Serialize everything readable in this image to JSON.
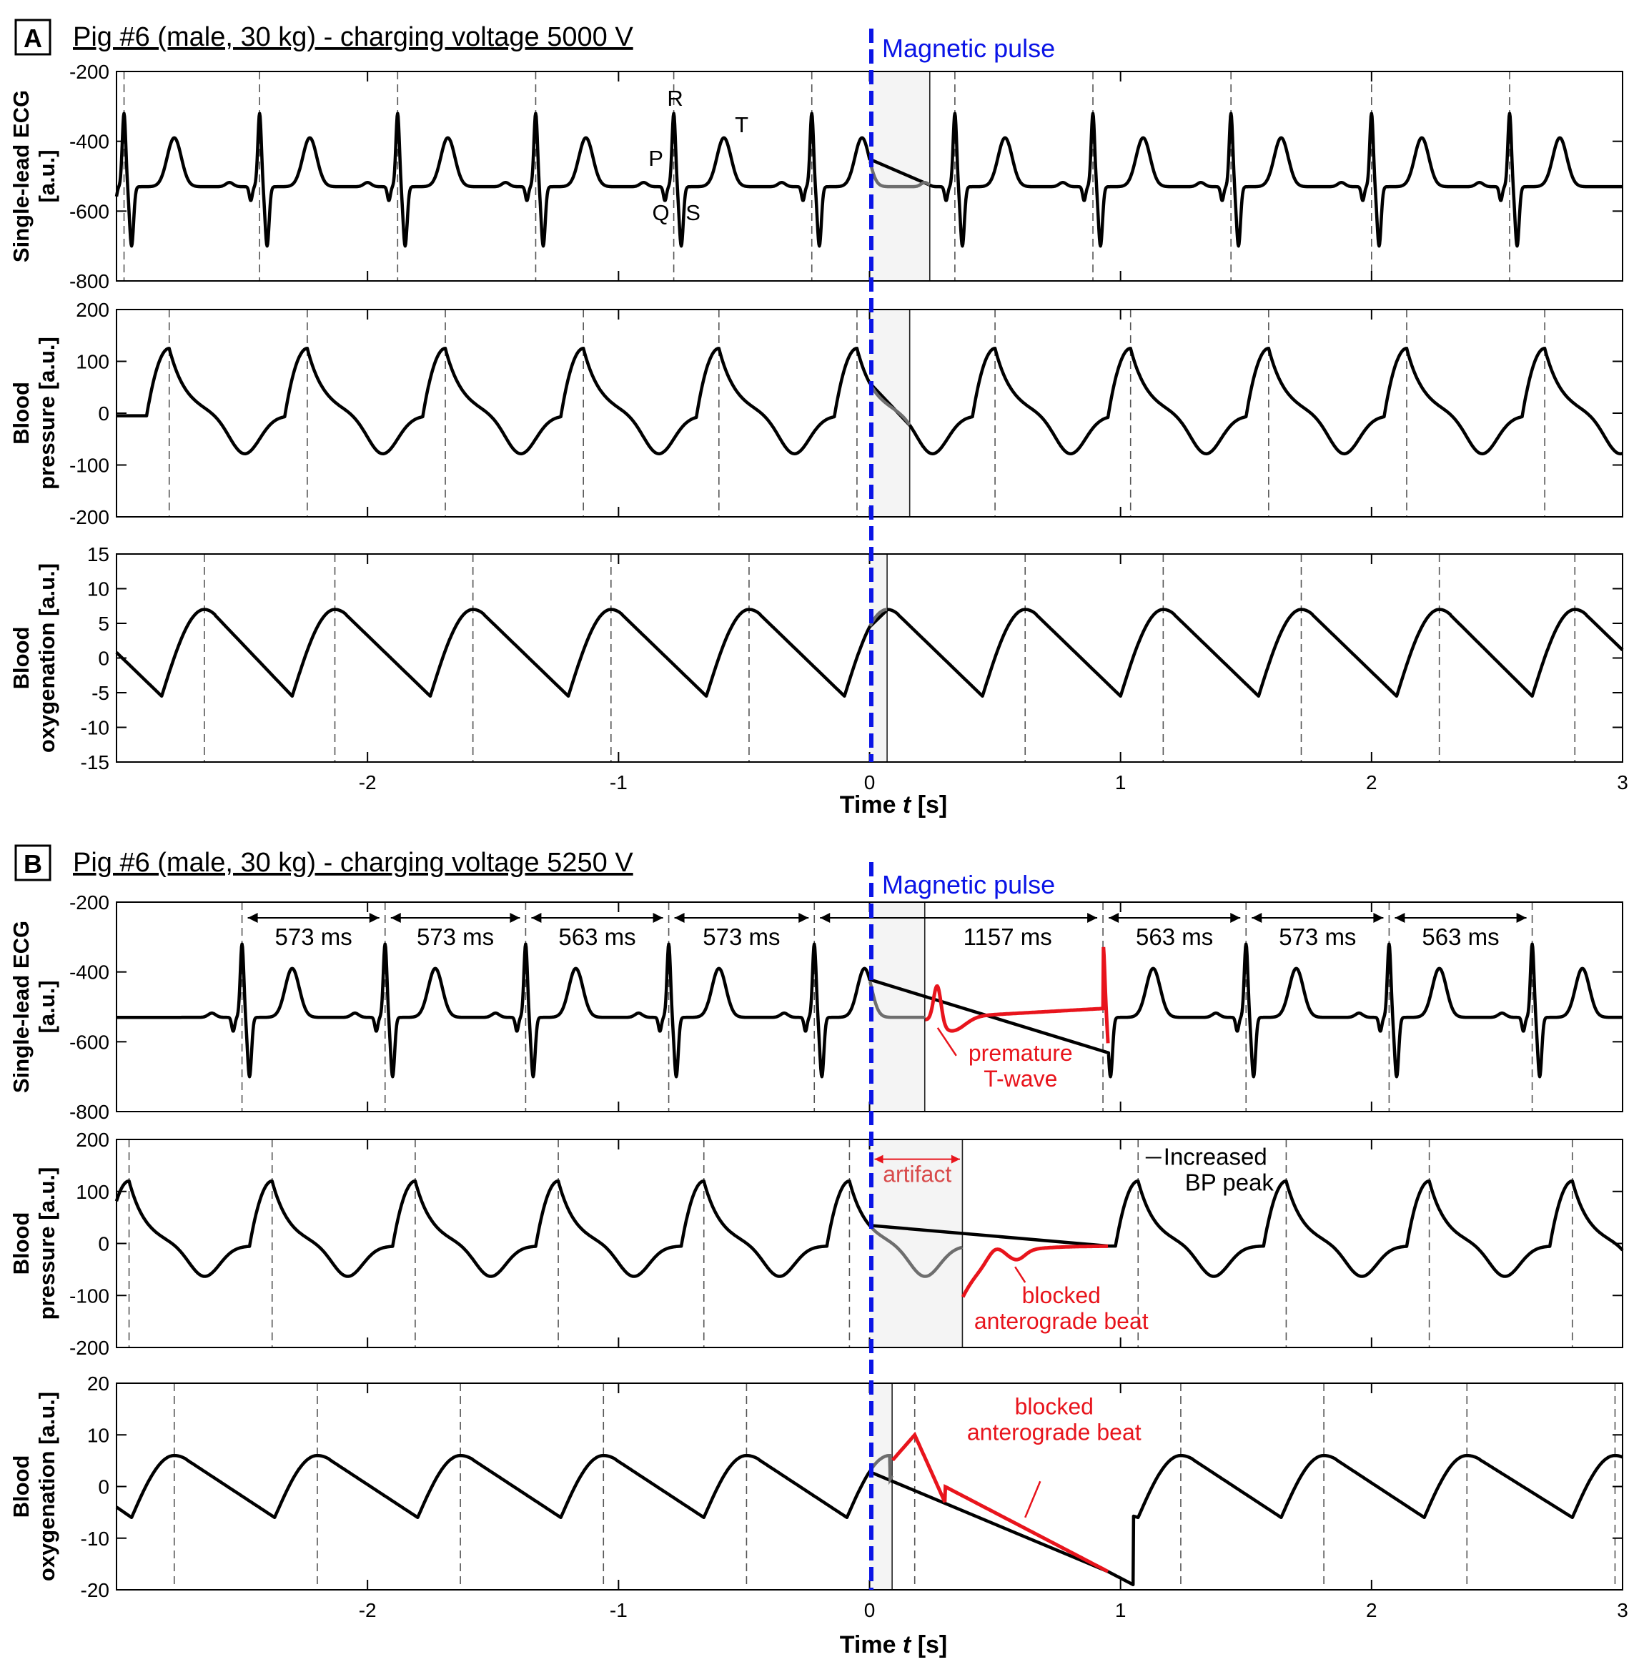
{
  "figure": {
    "panel_a": {
      "letter": "A",
      "title": "Pig #6 (male, 30 kg) - charging voltage 5000 V"
    },
    "panel_b": {
      "letter": "B",
      "title": "Pig #6 (male, 30 kg) - charging voltage 5250 V"
    },
    "pulse_label": "Magnetic pulse",
    "xlabel_prefix": "Time ",
    "xlabel_var": "t",
    "xlabel_suffix": " [s]",
    "colors": {
      "signal": "#000000",
      "artifact_signal": "#6e6e6e",
      "pulse_line": "#0a14e6",
      "abnormal": "#e8141c",
      "shade": "#f4f4f4"
    }
  },
  "chart_data": [
    {
      "type": "line",
      "panel": "A",
      "name": "ecg",
      "ylabel": [
        "Single-lead ECG",
        "[a.u.]"
      ],
      "xlim": [
        -3,
        3
      ],
      "ylim": [
        -800,
        -200
      ],
      "yticks": [
        -200,
        -400,
        -600,
        -800
      ],
      "xticks": [
        -2,
        -1,
        0,
        1,
        2,
        3
      ],
      "xtick_labels_shown": false,
      "beat_times": [
        -2.97,
        -2.43,
        -1.88,
        -1.33,
        -0.78,
        -0.23,
        0.34,
        0.89,
        1.44,
        2.0,
        2.55
      ],
      "artifact_window": [
        0,
        0.24
      ],
      "wave_labels": [
        "P",
        "Q",
        "R",
        "S",
        "T"
      ],
      "baseline": -530
    },
    {
      "type": "line",
      "panel": "A",
      "name": "blood_pressure",
      "ylabel": [
        "Blood",
        "pressure [a.u.]"
      ],
      "xlim": [
        -3,
        3
      ],
      "ylim": [
        -200,
        200
      ],
      "yticks": [
        200,
        100,
        0,
        -100,
        -200
      ],
      "xticks": [
        -2,
        -1,
        0,
        1,
        2,
        3
      ],
      "xtick_labels_shown": false,
      "peak_times": [
        -2.79,
        -2.24,
        -1.69,
        -1.14,
        -0.6,
        -0.05,
        0.5,
        1.04,
        1.59,
        2.14,
        2.69
      ],
      "artifact_window": [
        0,
        0.16
      ],
      "peak_value": 130,
      "trough_value": -75
    },
    {
      "type": "line",
      "panel": "A",
      "name": "blood_oxygenation",
      "ylabel": [
        "Blood",
        "oxygenation [a.u.]"
      ],
      "xlim": [
        -3,
        3
      ],
      "ylim": [
        -15,
        15
      ],
      "yticks": [
        15,
        10,
        5,
        0,
        -5,
        -10,
        -15
      ],
      "xticks": [
        -2,
        -1,
        0,
        1,
        2,
        3
      ],
      "xtick_labels_shown": true,
      "xtick_labels": [
        "-2",
        "-1",
        "0",
        "1",
        "2",
        "3"
      ],
      "peak_times": [
        -2.65,
        -2.13,
        -1.58,
        -1.03,
        -0.48,
        0.07,
        0.62,
        1.17,
        1.72,
        2.27,
        2.81
      ],
      "artifact_window": [
        0,
        0.07
      ],
      "peak_value": 7,
      "trough_value": -5.5
    },
    {
      "type": "line",
      "panel": "B",
      "name": "ecg",
      "ylabel": [
        "Single-lead ECG",
        "[a.u.]"
      ],
      "xlim": [
        -3,
        3
      ],
      "ylim": [
        -800,
        -200
      ],
      "yticks": [
        -200,
        -400,
        -600,
        -800
      ],
      "xticks": [
        -2,
        -1,
        0,
        1,
        2,
        3
      ],
      "xtick_labels_shown": false,
      "beat_times": [
        -2.5,
        -1.93,
        -1.37,
        -0.8,
        -0.22,
        0.93,
        1.5,
        2.07,
        2.64
      ],
      "artifact_window": [
        0,
        0.22
      ],
      "rr_intervals": [
        {
          "from": -2.5,
          "to": -1.93,
          "label": "573 ms"
        },
        {
          "from": -1.93,
          "to": -1.37,
          "label": "573 ms"
        },
        {
          "from": -1.37,
          "to": -0.8,
          "label": "563 ms"
        },
        {
          "from": -0.8,
          "to": -0.22,
          "label": "573 ms"
        },
        {
          "from": -0.22,
          "to": 0.93,
          "label": "1157 ms"
        },
        {
          "from": 0.93,
          "to": 1.5,
          "label": "563 ms"
        },
        {
          "from": 1.5,
          "to": 2.07,
          "label": "573 ms"
        },
        {
          "from": 2.07,
          "to": 2.64,
          "label": "563 ms"
        }
      ],
      "annotation": [
        "premature",
        "T-wave"
      ],
      "baseline": -530
    },
    {
      "type": "line",
      "panel": "B",
      "name": "blood_pressure",
      "ylabel": [
        "Blood",
        "pressure [a.u.]"
      ],
      "xlim": [
        -3,
        3
      ],
      "ylim": [
        -200,
        200
      ],
      "yticks": [
        200,
        100,
        0,
        -100,
        -200
      ],
      "xticks": [
        -2,
        -1,
        0,
        1,
        2,
        3
      ],
      "xtick_labels_shown": false,
      "peak_times": [
        -2.95,
        -2.38,
        -1.81,
        -1.24,
        -0.66,
        -0.08,
        1.07,
        1.66,
        2.23,
        2.8
      ],
      "artifact_window": [
        0,
        0.37
      ],
      "artifact_label": "artifact",
      "annotations": [
        [
          "Increased",
          "BP peak"
        ],
        [
          "blocked",
          "anterograde beat"
        ]
      ],
      "peak_value": 125,
      "trough_value": -60
    },
    {
      "type": "line",
      "panel": "B",
      "name": "blood_oxygenation",
      "ylabel": [
        "Blood",
        "oxygenation [a.u.]"
      ],
      "xlim": [
        -3,
        3
      ],
      "ylim": [
        -20,
        20
      ],
      "yticks": [
        20,
        10,
        0,
        -10,
        -20
      ],
      "xticks": [
        -2,
        -1,
        0,
        1,
        2,
        3
      ],
      "xtick_labels_shown": true,
      "xtick_labels": [
        "-2",
        "-1",
        "0",
        "1",
        "2",
        "3"
      ],
      "peak_times": [
        -2.77,
        -2.2,
        -1.63,
        -1.06,
        -0.49,
        0.08,
        0.18,
        1.24,
        1.81,
        2.38,
        2.97
      ],
      "artifact_window": [
        0,
        0.09
      ],
      "annotation": [
        "blocked",
        "anterograde beat"
      ],
      "peak_value": 6,
      "trough_value": -6
    }
  ]
}
